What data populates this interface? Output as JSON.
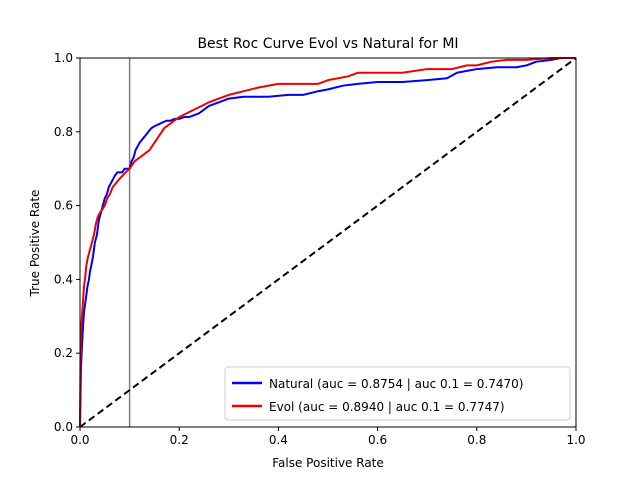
{
  "chart_data": {
    "type": "line",
    "title": "Best Roc Curve Evol vs Natural for MI",
    "xlabel": "False Positive Rate",
    "ylabel": "True Positive Rate",
    "xlim": [
      0.0,
      1.0
    ],
    "ylim": [
      0.0,
      1.0
    ],
    "xticks": [
      "0.0",
      "0.2",
      "0.4",
      "0.6",
      "0.8",
      "1.0"
    ],
    "yticks": [
      "0.0",
      "0.2",
      "0.4",
      "0.6",
      "0.8",
      "1.0"
    ],
    "grid": false,
    "legend_position": "lower-right",
    "reference_line": {
      "name": "chance",
      "x": [
        0,
        1
      ],
      "y": [
        0,
        1
      ],
      "color": "#000000",
      "style": "dashed"
    },
    "vertical_marker": {
      "x": 0.1,
      "color": "#808080"
    },
    "series": [
      {
        "name": "Natural (auc = 0.8754 | auc 0.1 = 0.7470)",
        "color": "#0000ee",
        "x": [
          0.0,
          0.001,
          0.002,
          0.004,
          0.006,
          0.008,
          0.01,
          0.012,
          0.015,
          0.018,
          0.02,
          0.023,
          0.026,
          0.03,
          0.034,
          0.038,
          0.042,
          0.046,
          0.05,
          0.054,
          0.058,
          0.062,
          0.066,
          0.07,
          0.075,
          0.08,
          0.085,
          0.09,
          0.095,
          0.1,
          0.104,
          0.108,
          0.112,
          0.116,
          0.12,
          0.126,
          0.132,
          0.138,
          0.144,
          0.15,
          0.158,
          0.166,
          0.174,
          0.182,
          0.19,
          0.2,
          0.21,
          0.22,
          0.24,
          0.26,
          0.28,
          0.3,
          0.33,
          0.35,
          0.38,
          0.42,
          0.45,
          0.48,
          0.5,
          0.53,
          0.56,
          0.6,
          0.65,
          0.7,
          0.74,
          0.76,
          0.78,
          0.8,
          0.84,
          0.88,
          0.9,
          0.92,
          0.95,
          0.97,
          1.0
        ],
        "y": [
          0.0,
          0.08,
          0.16,
          0.22,
          0.27,
          0.31,
          0.33,
          0.35,
          0.38,
          0.4,
          0.42,
          0.44,
          0.46,
          0.5,
          0.52,
          0.56,
          0.58,
          0.6,
          0.62,
          0.63,
          0.65,
          0.66,
          0.67,
          0.68,
          0.69,
          0.69,
          0.69,
          0.7,
          0.7,
          0.7,
          0.72,
          0.73,
          0.75,
          0.76,
          0.77,
          0.78,
          0.79,
          0.8,
          0.81,
          0.815,
          0.82,
          0.825,
          0.83,
          0.83,
          0.835,
          0.835,
          0.84,
          0.84,
          0.85,
          0.87,
          0.88,
          0.89,
          0.895,
          0.895,
          0.895,
          0.9,
          0.9,
          0.91,
          0.915,
          0.925,
          0.93,
          0.935,
          0.935,
          0.94,
          0.945,
          0.96,
          0.965,
          0.97,
          0.975,
          0.975,
          0.98,
          0.99,
          0.995,
          1.0,
          1.0
        ]
      },
      {
        "name": "Evol (auc = 0.8940 | auc 0.1 = 0.7747)",
        "color": "#ee0000",
        "x": [
          0.0,
          0.001,
          0.002,
          0.004,
          0.006,
          0.008,
          0.01,
          0.013,
          0.016,
          0.02,
          0.024,
          0.028,
          0.032,
          0.036,
          0.04,
          0.045,
          0.05,
          0.055,
          0.06,
          0.066,
          0.072,
          0.078,
          0.085,
          0.092,
          0.1,
          0.11,
          0.12,
          0.13,
          0.14,
          0.15,
          0.16,
          0.17,
          0.18,
          0.19,
          0.2,
          0.215,
          0.23,
          0.245,
          0.26,
          0.28,
          0.3,
          0.33,
          0.36,
          0.4,
          0.44,
          0.48,
          0.5,
          0.54,
          0.56,
          0.6,
          0.65,
          0.7,
          0.75,
          0.78,
          0.8,
          0.83,
          0.86,
          0.9,
          0.95,
          1.0
        ],
        "y": [
          0.0,
          0.18,
          0.26,
          0.3,
          0.34,
          0.38,
          0.4,
          0.44,
          0.46,
          0.48,
          0.5,
          0.52,
          0.55,
          0.57,
          0.58,
          0.59,
          0.6,
          0.62,
          0.63,
          0.65,
          0.66,
          0.67,
          0.68,
          0.69,
          0.7,
          0.72,
          0.73,
          0.74,
          0.75,
          0.77,
          0.79,
          0.81,
          0.82,
          0.83,
          0.84,
          0.85,
          0.86,
          0.87,
          0.88,
          0.89,
          0.9,
          0.91,
          0.92,
          0.93,
          0.93,
          0.93,
          0.94,
          0.95,
          0.96,
          0.96,
          0.96,
          0.97,
          0.97,
          0.98,
          0.98,
          0.99,
          0.995,
          0.995,
          1.0,
          1.0
        ]
      }
    ]
  }
}
